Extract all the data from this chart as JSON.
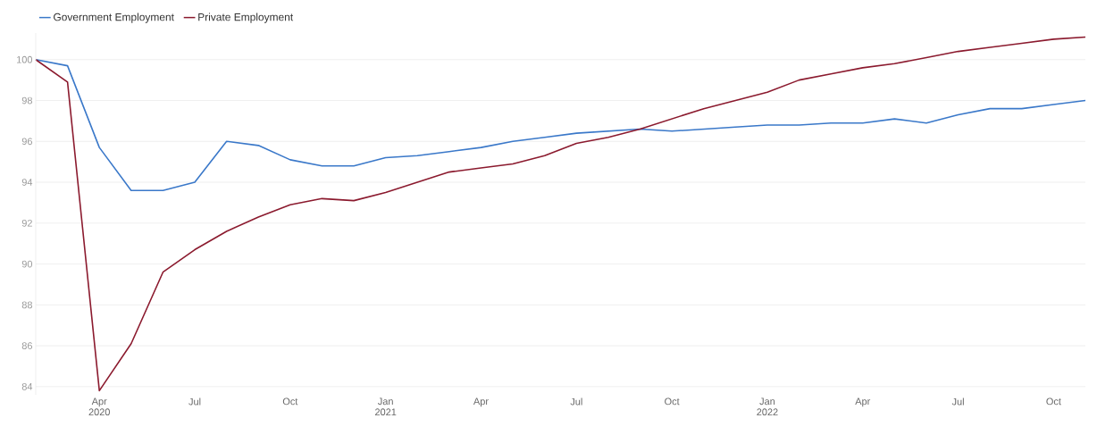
{
  "chart_data": {
    "type": "line",
    "x": [
      "2020-02",
      "2020-03",
      "2020-04",
      "2020-05",
      "2020-06",
      "2020-07",
      "2020-08",
      "2020-09",
      "2020-10",
      "2020-11",
      "2020-12",
      "2021-01",
      "2021-02",
      "2021-03",
      "2021-04",
      "2021-05",
      "2021-06",
      "2021-07",
      "2021-08",
      "2021-09",
      "2021-10",
      "2021-11",
      "2021-12",
      "2022-01",
      "2022-02",
      "2022-03",
      "2022-04",
      "2022-05",
      "2022-06",
      "2022-07",
      "2022-08",
      "2022-09",
      "2022-10",
      "2022-11"
    ],
    "series": [
      {
        "name": "Government Employment",
        "color": "#3a78c9",
        "values": [
          100,
          99.7,
          95.7,
          93.6,
          93.6,
          94.0,
          96.0,
          95.8,
          95.1,
          94.8,
          94.8,
          95.2,
          95.3,
          95.5,
          95.7,
          96.0,
          96.2,
          96.4,
          96.5,
          96.6,
          96.5,
          96.6,
          96.7,
          96.8,
          96.8,
          96.9,
          96.9,
          97.1,
          96.9,
          97.3,
          97.6,
          97.6,
          97.8,
          98.0
        ]
      },
      {
        "name": "Private Employment",
        "color": "#8b1a2e",
        "values": [
          100,
          98.9,
          83.8,
          86.1,
          89.6,
          90.7,
          91.6,
          92.3,
          92.9,
          93.2,
          93.1,
          93.5,
          94.0,
          94.5,
          94.7,
          94.9,
          95.3,
          95.9,
          96.2,
          96.6,
          97.1,
          97.6,
          98.0,
          98.4,
          99.0,
          99.3,
          99.6,
          99.8,
          100.1,
          100.4,
          100.6,
          100.8,
          101.0,
          101.1
        ]
      }
    ],
    "xlim": [
      "2020-02",
      "2022-11"
    ],
    "xticks": [
      {
        "value": "2020-04",
        "label": "Apr 2020"
      },
      {
        "value": "2020-07",
        "label": "Jul"
      },
      {
        "value": "2020-10",
        "label": "Oct"
      },
      {
        "value": "2021-01",
        "label": "Jan 2021"
      },
      {
        "value": "2021-04",
        "label": "Apr"
      },
      {
        "value": "2021-07",
        "label": "Jul"
      },
      {
        "value": "2021-10",
        "label": "Oct"
      },
      {
        "value": "2022-01",
        "label": "Jan 2022"
      },
      {
        "value": "2022-04",
        "label": "Apr"
      },
      {
        "value": "2022-07",
        "label": "Jul"
      },
      {
        "value": "2022-10",
        "label": "Oct"
      }
    ],
    "ylim": [
      83.6,
      101.3
    ],
    "yticks": [
      84,
      86,
      88,
      90,
      92,
      94,
      96,
      98,
      100
    ],
    "grid": "y",
    "legend": "top left"
  }
}
